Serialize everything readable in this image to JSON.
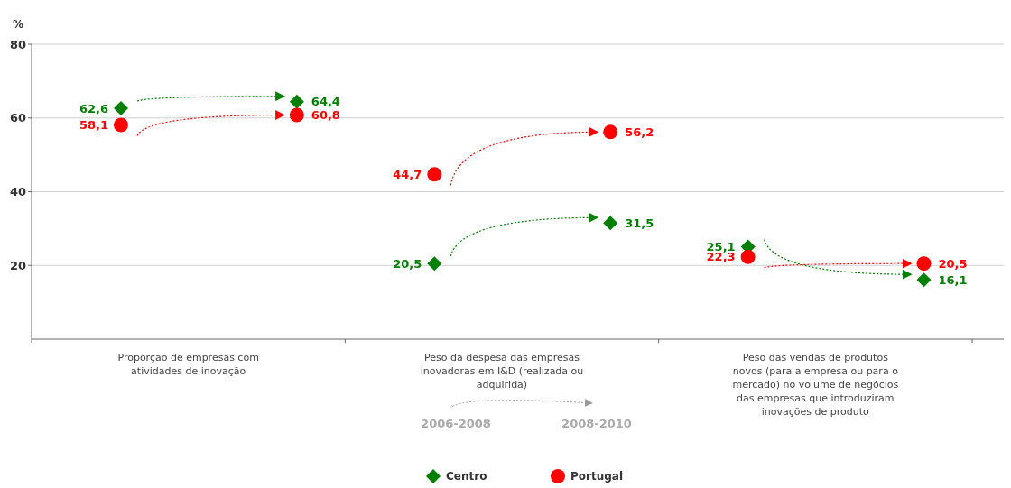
{
  "chart_data": {
    "type": "scatter",
    "ylabel": "%",
    "ylim": [
      0,
      80
    ],
    "yticks": [
      20,
      40,
      60,
      80
    ],
    "grid": "y",
    "legend": "bottom",
    "categories": [
      "Proporção de empresas com atividades de inovação",
      "Peso da despesa das empresas inovadoras em I&D (realizada ou adquirida)",
      "Peso das vendas de produtos novos (para a empresa ou para o mercado) no volume de negócios das empresas que introduziram inovações de produto"
    ],
    "series": [
      {
        "name": "Centro",
        "color": "#008000",
        "marker": "diamond",
        "values": [
          62.6,
          20.5,
          25.1
        ],
        "value_labels": [
          "62,6",
          "20,5",
          "25,1"
        ]
      },
      {
        "name": "Portugal",
        "color": "#ff0000",
        "marker": "circle",
        "values": [
          58.1,
          44.7,
          22.3
        ],
        "value_labels": [
          "58,1",
          "44,7",
          "22,3"
        ]
      },
      {
        "color": "#008000",
        "marker": "diamond",
        "values": [
          64.4,
          31.5,
          16.1
        ],
        "value_labels": [
          "64,4",
          "31,5",
          "16,1"
        ]
      },
      {
        "color": "#ff0000",
        "marker": "circle",
        "values": [
          60.8,
          56.2,
          20.5
        ],
        "value_labels": [
          "60,8",
          "56,2",
          "20,5"
        ]
      }
    ],
    "annotations": [
      "2006-2008",
      "2008-2010"
    ]
  }
}
